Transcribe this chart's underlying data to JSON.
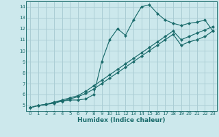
{
  "xlabel": "Humidex (Indice chaleur)",
  "bg_color": "#cce8ec",
  "grid_color": "#aacdd4",
  "line_color": "#1a6b6b",
  "xlim": [
    -0.5,
    23.5
  ],
  "ylim": [
    4.5,
    14.5
  ],
  "xticks": [
    0,
    1,
    2,
    3,
    4,
    5,
    6,
    7,
    8,
    9,
    10,
    11,
    12,
    13,
    14,
    15,
    16,
    17,
    18,
    19,
    20,
    21,
    22,
    23
  ],
  "yticks": [
    5,
    6,
    7,
    8,
    9,
    10,
    11,
    12,
    13,
    14
  ],
  "line1_x": [
    0,
    1,
    2,
    3,
    4,
    5,
    6,
    7,
    8,
    9,
    10,
    11,
    12,
    13,
    14,
    15,
    16,
    17,
    18,
    19,
    20,
    21,
    22,
    23
  ],
  "line1_y": [
    4.8,
    5.0,
    5.1,
    5.2,
    5.4,
    5.5,
    5.5,
    5.6,
    6.0,
    9.0,
    11.0,
    12.0,
    11.4,
    12.8,
    14.0,
    14.2,
    13.4,
    12.8,
    12.5,
    12.3,
    12.5,
    12.6,
    12.8,
    11.8
  ],
  "line2_x": [
    0,
    1,
    2,
    3,
    4,
    5,
    6,
    7,
    8,
    9,
    10,
    11,
    12,
    13,
    14,
    15,
    16,
    17,
    18,
    19,
    20,
    21,
    22,
    23
  ],
  "line2_y": [
    4.8,
    5.0,
    5.1,
    5.3,
    5.5,
    5.7,
    5.9,
    6.3,
    6.8,
    7.3,
    7.8,
    8.3,
    8.8,
    9.3,
    9.8,
    10.3,
    10.8,
    11.3,
    11.8,
    11.0,
    11.3,
    11.6,
    11.9,
    12.2
  ],
  "line3_x": [
    0,
    1,
    2,
    3,
    4,
    5,
    6,
    7,
    8,
    9,
    10,
    11,
    12,
    13,
    14,
    15,
    16,
    17,
    18,
    19,
    20,
    21,
    22,
    23
  ],
  "line3_y": [
    4.8,
    5.0,
    5.1,
    5.3,
    5.4,
    5.6,
    5.8,
    6.1,
    6.5,
    7.0,
    7.5,
    8.0,
    8.5,
    9.0,
    9.5,
    10.0,
    10.5,
    11.0,
    11.5,
    10.5,
    10.8,
    11.0,
    11.3,
    11.8
  ]
}
